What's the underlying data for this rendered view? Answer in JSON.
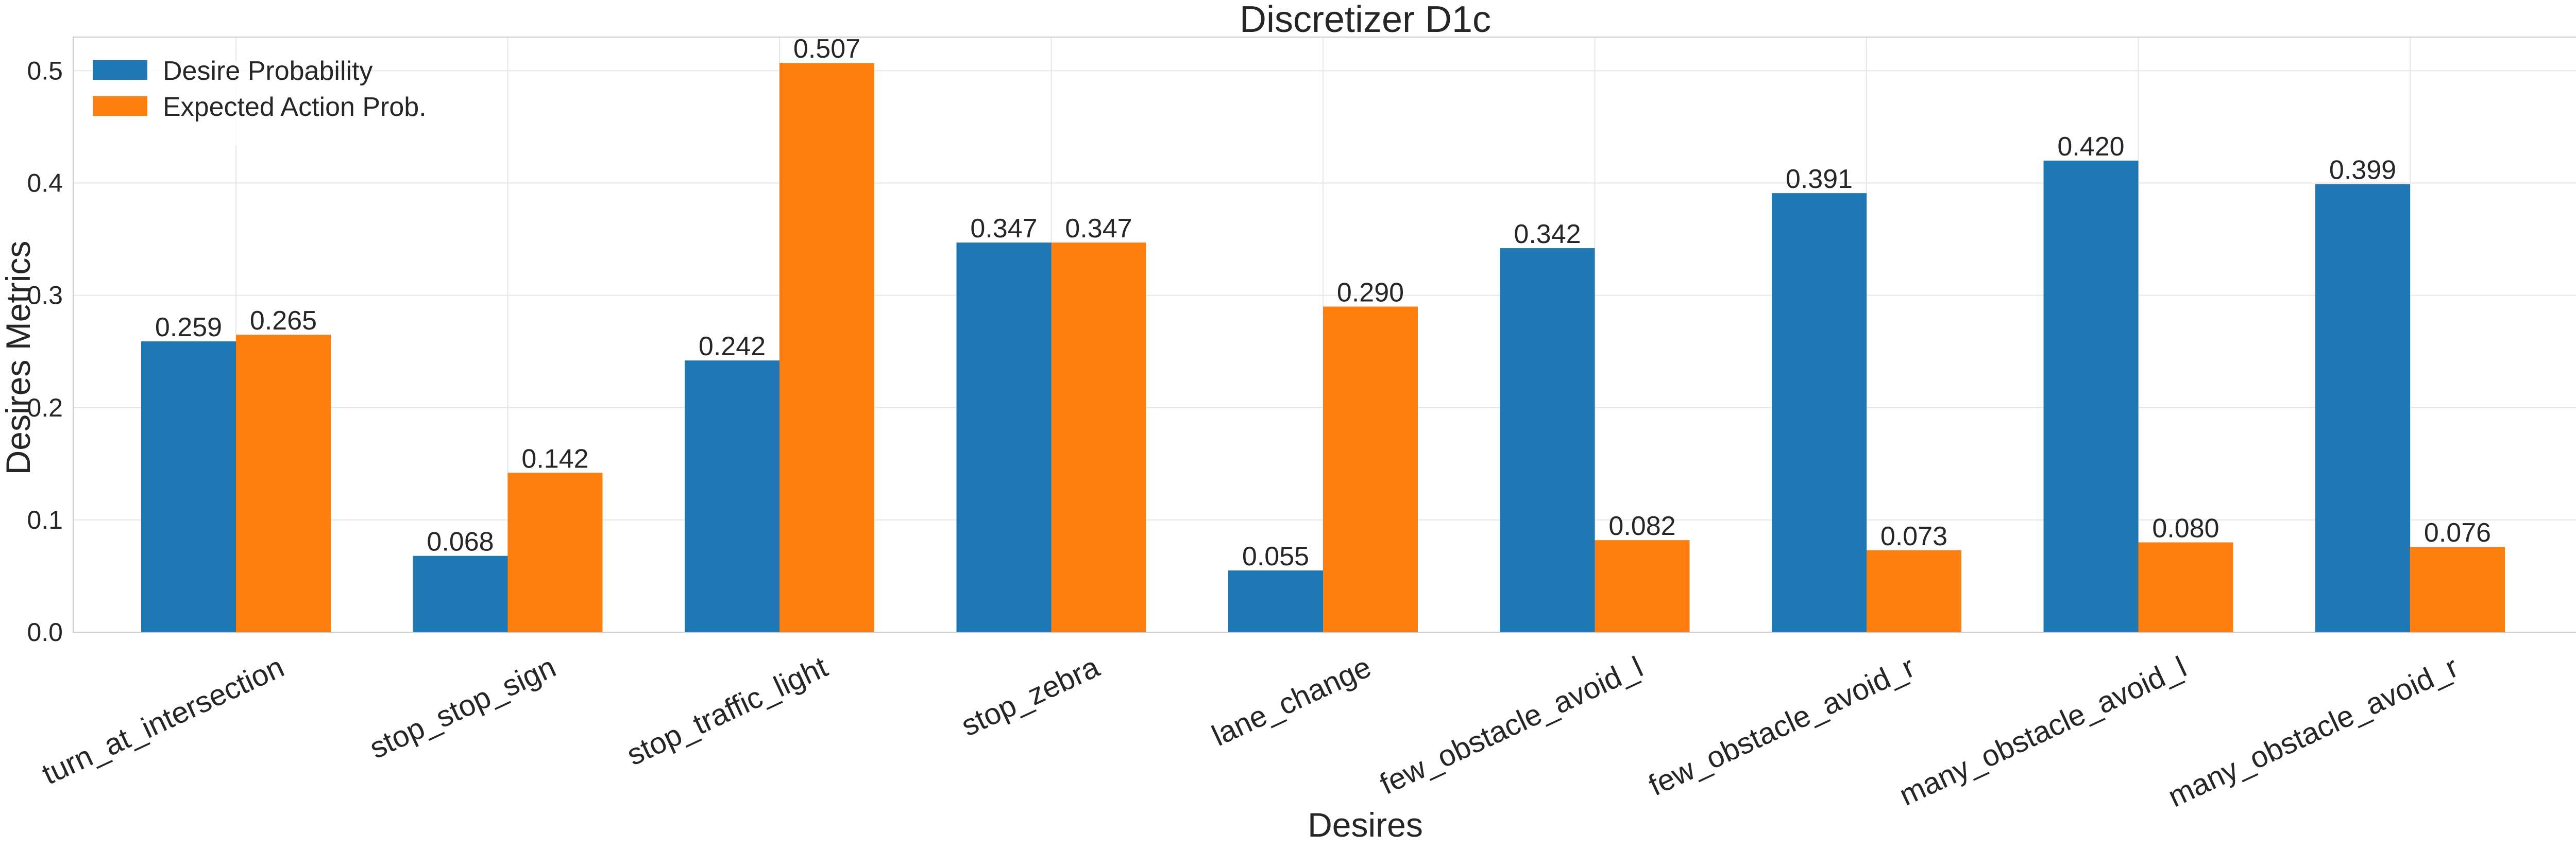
{
  "chart_data": {
    "type": "bar",
    "title": "Discretizer D1c",
    "xlabel": "Desires",
    "ylabel": "Desires Metrics",
    "ylim": [
      0,
      0.53
    ],
    "yticks": [
      "0.0",
      "0.1",
      "0.2",
      "0.3",
      "0.4",
      "0.5"
    ],
    "ytick_values": [
      0,
      0.1,
      0.2,
      0.3,
      0.4,
      0.5
    ],
    "grid": true,
    "legend_position": "top-left",
    "categories": [
      "turn_at_intersection",
      "stop_stop_sign",
      "stop_traffic_light",
      "stop_zebra",
      "lane_change",
      "few_obstacle_avoid_l",
      "few_obstacle_avoid_r",
      "many_obstacle_avoid_l",
      "many_obstacle_avoid_r"
    ],
    "series": [
      {
        "name": "Desire Probability",
        "color": "#1f77b4",
        "values": [
          0.259,
          0.068,
          0.242,
          0.347,
          0.055,
          0.342,
          0.391,
          0.42,
          0.399
        ],
        "labels": [
          "0.259",
          "0.068",
          "0.242",
          "0.347",
          "0.055",
          "0.342",
          "0.391",
          "0.420",
          "0.399"
        ]
      },
      {
        "name": "Expected Action Prob.",
        "color": "#ff7f0e",
        "values": [
          0.265,
          0.142,
          0.507,
          0.347,
          0.29,
          0.082,
          0.073,
          0.08,
          0.076
        ],
        "labels": [
          "0.265",
          "0.142",
          "0.507",
          "0.347",
          "0.290",
          "0.082",
          "0.073",
          "0.080",
          "0.076"
        ]
      }
    ]
  }
}
